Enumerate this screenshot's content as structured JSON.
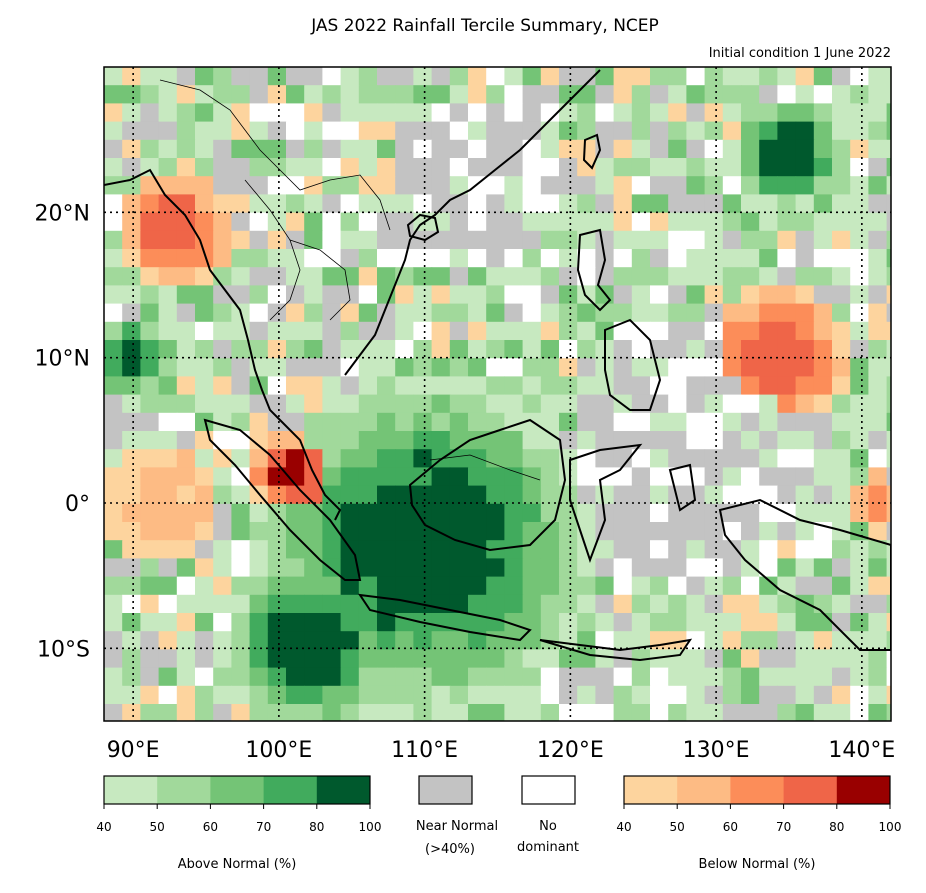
{
  "title": "JAS 2022 Rainfall Tercile Summary, NCEP",
  "subtitle": "Initial condition 1 June 2022",
  "axes": {
    "lon_ticks": [
      "90°E",
      "100°E",
      "110°E",
      "120°E",
      "130°E",
      "140°E"
    ],
    "lat_ticks": [
      "20°N",
      "10°N",
      "0°",
      "10°S"
    ],
    "lon_values": [
      90,
      100,
      110,
      120,
      130,
      140
    ],
    "lat_values": [
      20,
      10,
      0,
      -10
    ],
    "lon_range": [
      88,
      142
    ],
    "lat_range": [
      -15,
      30
    ]
  },
  "colors": {
    "above": [
      "#c7e9c0",
      "#a1d99b",
      "#74c476",
      "#41ab5d",
      "#00592d"
    ],
    "below": [
      "#fdd49e",
      "#fdbb84",
      "#fc8d59",
      "#ef6548",
      "#990000"
    ],
    "near_normal": "#c3c3c3",
    "no_dominant": "#ffffff",
    "coast": "#000000"
  },
  "legend": {
    "above": {
      "ticks": [
        "40",
        "50",
        "60",
        "70",
        "80",
        "100"
      ],
      "caption": "Above Normal (%)"
    },
    "near_normal": {
      "caption_line1": "Near Normal",
      "caption_line2": "(>40%)"
    },
    "no_dominant": {
      "caption_line1": "No",
      "caption_line2": "dominant"
    },
    "below": {
      "ticks": [
        "40",
        "50",
        "60",
        "70",
        "80",
        "100"
      ],
      "caption": "Below Normal (%)"
    }
  },
  "regions": [
    {
      "name": "Indonesia and seas",
      "category": "above",
      "level": 5
    },
    {
      "name": "Sumatra north",
      "category": "below",
      "level": 5
    },
    {
      "name": "Myanmar",
      "category": "below",
      "level": 4
    },
    {
      "name": "Western Pacific east of Philippines",
      "category": "below",
      "level": 4
    },
    {
      "name": "Northwest Pacific near 25N 135E",
      "category": "above",
      "level": 5
    },
    {
      "name": "Eastern Indian Ocean equator",
      "category": "below",
      "level": 2
    },
    {
      "name": "Philippine Sea",
      "category": "near_normal",
      "level": 0
    },
    {
      "name": "South China Sea north",
      "category": "near_normal",
      "level": 0
    }
  ]
}
